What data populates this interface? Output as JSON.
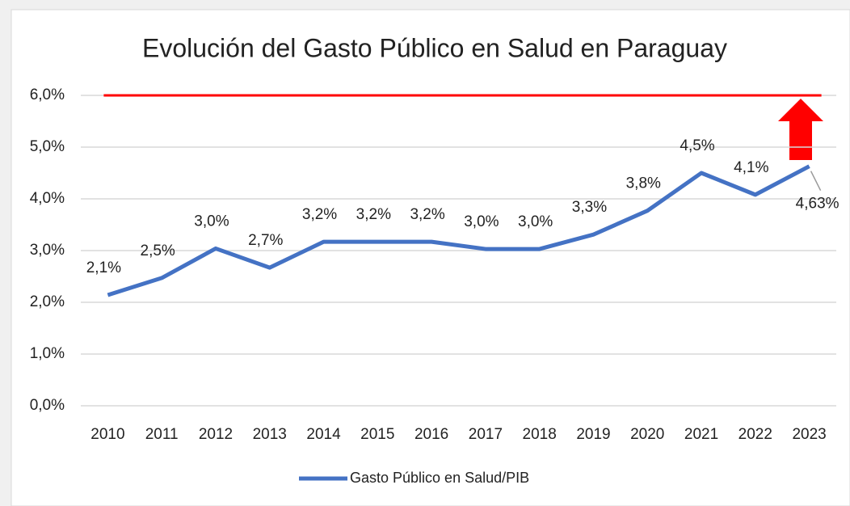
{
  "chart_data": {
    "type": "line",
    "title": "Evolución del Gasto Público en Salud en Paraguay",
    "categories": [
      "2010",
      "2011",
      "2012",
      "2013",
      "2014",
      "2015",
      "2016",
      "2017",
      "2018",
      "2019",
      "2020",
      "2021",
      "2022",
      "2023"
    ],
    "series": [
      {
        "name": "Gasto Público en Salud/PIB",
        "color": "#4472c4",
        "values": [
          2.14,
          2.47,
          3.04,
          2.67,
          3.17,
          3.17,
          3.17,
          3.03,
          3.03,
          3.31,
          3.77,
          4.5,
          4.08,
          4.63
        ],
        "value_labels": [
          "2,1%",
          "2,5%",
          "3,0%",
          "2,7%",
          "3,2%",
          "3,2%",
          "3,2%",
          "3,0%",
          "3,0%",
          "3,3%",
          "3,8%",
          "4,5%",
          "4,1%",
          "4,63%"
        ]
      }
    ],
    "reference_line": {
      "value": 6,
      "color": "#ff0000"
    },
    "ylim": [
      0,
      6
    ],
    "yticks": [
      {
        "value": 0,
        "label": "0,0%"
      },
      {
        "value": 1,
        "label": "1,0%"
      },
      {
        "value": 2,
        "label": "2,0%"
      },
      {
        "value": 3,
        "label": "3,0%"
      },
      {
        "value": 4,
        "label": "4,0%"
      },
      {
        "value": 5,
        "label": "5,0%"
      },
      {
        "value": 6,
        "label": "6,0%"
      }
    ],
    "grid": true,
    "legend": "bottom"
  }
}
